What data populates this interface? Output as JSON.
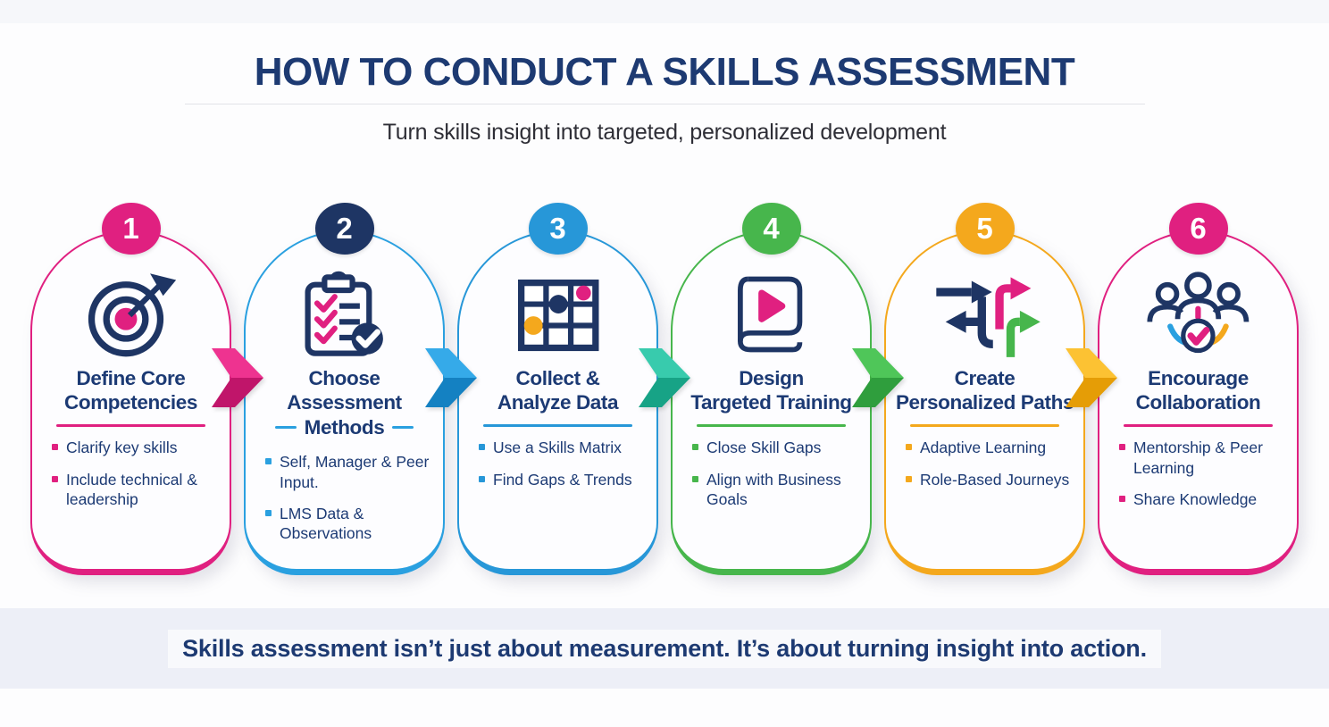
{
  "header": {
    "title": "HOW TO CONDUCT A SKILLS ASSESSMENT",
    "subtitle": "Turn skills insight into targeted, personalized development"
  },
  "footer": {
    "quote": "Skills assessment isn’t just about measurement. It’s about turning insight into action."
  },
  "palette": {
    "navy": "#1e3564",
    "text_navy": "#1c3a74",
    "pink": "#e02080",
    "blue": "#2aa0e0",
    "teal": "#2cc3a7",
    "green": "#47b64c",
    "amber": "#f4a81d",
    "band_bg": "#edeff7"
  },
  "steps": [
    {
      "number": "1",
      "icon": "target",
      "badge_color": "#e02080",
      "accent": "#e02080",
      "title_lines": [
        "Define Core",
        "Competencies"
      ],
      "bullets": [
        "Clarify key skills",
        "Include technical & leadership"
      ]
    },
    {
      "number": "2",
      "icon": "clipboard",
      "badge_color": "#1e3564",
      "accent": "#2aa0e0",
      "divider_flank": true,
      "title_lines": [
        "Choose",
        "Assessment",
        "Methods"
      ],
      "bullets": [
        "Self, Manager & Peer Input.",
        "LMS Data & Observations"
      ]
    },
    {
      "number": "3",
      "icon": "matrix",
      "badge_color": "#2797d8",
      "accent": "#2797d8",
      "title_lines": [
        "Collect &",
        "Analyze Data"
      ],
      "bullets": [
        "Use a Skills Matrix",
        "Find Gaps & Trends"
      ]
    },
    {
      "number": "4",
      "icon": "book-play",
      "badge_color": "#47b64c",
      "accent": "#47b64c",
      "title_lines": [
        "Design",
        "Targeted Training"
      ],
      "bullets": [
        "Close Skill Gaps",
        "Align with Business Goals"
      ]
    },
    {
      "number": "5",
      "icon": "branching-paths",
      "badge_color": "#f4a81d",
      "accent": "#f4a81d",
      "title_lines": [
        "Create",
        "Personalized Paths"
      ],
      "bullets": [
        "Adaptive Learning",
        "Role-Based Journeys"
      ]
    },
    {
      "number": "6",
      "icon": "people-check",
      "badge_color": "#e02080",
      "accent": "#e02080",
      "title_lines": [
        "Encourage",
        "Collaboration"
      ],
      "bullets": [
        "Mentorship & Peer Learning",
        "Share Knowledge"
      ]
    }
  ],
  "arrows": [
    {
      "color": "#ee3390",
      "shade": "#c0156a"
    },
    {
      "color": "#35aae9",
      "shade": "#1481c2"
    },
    {
      "color": "#38cbad",
      "shade": "#17a386"
    },
    {
      "color": "#4fc659",
      "shade": "#2f9e3d"
    },
    {
      "color": "#fcc233",
      "shade": "#e59d06"
    }
  ]
}
